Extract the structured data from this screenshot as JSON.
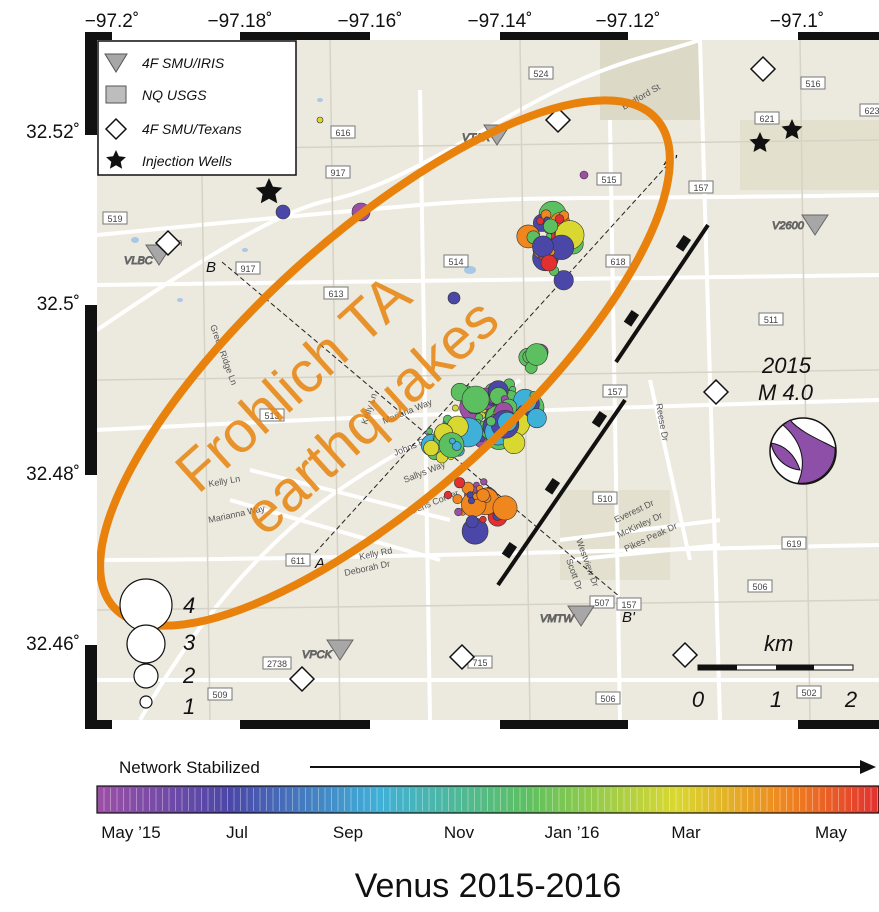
{
  "map": {
    "lon_ticks": [
      "−97.2˚",
      "−97.18˚",
      "−97.16˚",
      "−97.14˚",
      "−97.12˚",
      "−97.1˚"
    ],
    "lat_ticks": [
      "32.52˚",
      "32.5˚",
      "32.48˚",
      "32.46˚"
    ],
    "legend": [
      {
        "label": "4F SMU/IRIS",
        "icon": "inverted-triangle-icon"
      },
      {
        "label": "NQ USGS",
        "icon": "square-icon"
      },
      {
        "label": "4F SMU/Texans",
        "icon": "diamond-icon"
      },
      {
        "label": "Injection Wells",
        "icon": "star-icon"
      }
    ],
    "stations": [
      "VTAX",
      "VLBC",
      "V2600",
      "VMTW",
      "VPCK"
    ],
    "road_numbers": [
      "917",
      "524",
      "616",
      "515",
      "157",
      "519",
      "917",
      "514",
      "618",
      "613",
      "511",
      "157",
      "513",
      "510",
      "619",
      "611",
      "506",
      "507",
      "157",
      "2738",
      "715",
      "509",
      "506",
      "502",
      "621",
      "516",
      "623",
      "157"
    ],
    "street_names": [
      "Bedford St",
      "Green Ridge Ln",
      "Kelly Ln",
      "Mariana Way",
      "Johns Rd",
      "Sallys Way",
      "Karens Corner",
      "Kelly Ln",
      "Marianna Way",
      "Kelly Rd",
      "Deborah Dr",
      "Reese Dr",
      "Everest Dr",
      "McKinley Dr",
      "Pikes Peak Dr",
      "Westview Dr",
      "Scott Dr",
      "lillian"
    ],
    "cross_sections": {
      "a": "A",
      "a_prime": "A'",
      "b": "B",
      "b_prime": "B'"
    },
    "annotation": "Frohlich TA earthquakes",
    "annotation_color": "#e8820c",
    "mechanism": {
      "year": "2015",
      "magnitude": "M 4.0",
      "color": "#8e4fa8"
    },
    "scale_bar": {
      "unit": "km",
      "labels": [
        "0",
        "1",
        "2"
      ]
    },
    "magnitude_scale": [
      "4",
      "3",
      "2",
      "1"
    ],
    "colorbar": {
      "network_label": "Network Stabilized",
      "labels": [
        "May ’15",
        "Jul",
        "Sep",
        "Nov",
        "Jan ’16",
        "Mar",
        "May"
      ],
      "colors": [
        "#9d4fa6",
        "#4a47a8",
        "#3fb0d8",
        "#5dc060",
        "#d9d830",
        "#f0861e",
        "#e23030"
      ]
    },
    "caption": "Venus 2015-2016"
  }
}
